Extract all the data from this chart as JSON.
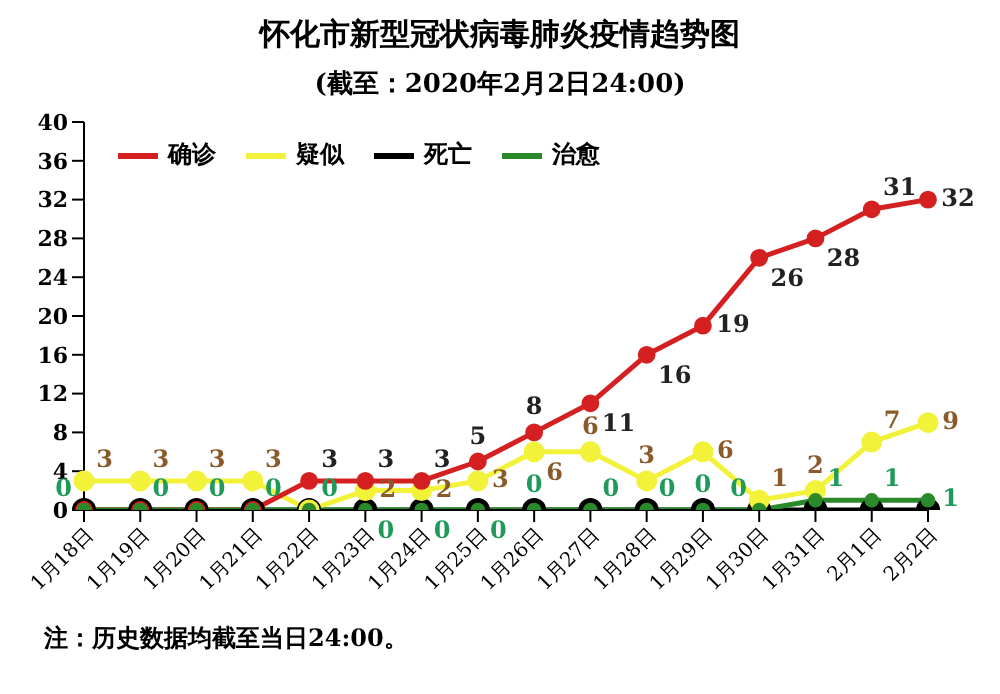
{
  "chart_data": {
    "type": "line",
    "title": "怀化市新型冠状病毒肺炎疫情趋势图",
    "subtitle": "(截至：2020年2月2日24:00)",
    "annotations": [
      "注：历史数据均截至当日24:00。"
    ],
    "categories": [
      "1月18日",
      "1月19日",
      "1月20日",
      "1月21日",
      "1月22日",
      "1月23日",
      "1月24日",
      "1月25日",
      "1月26日",
      "1月27日",
      "1月28日",
      "1月29日",
      "1月30日",
      "1月31日",
      "2月1日",
      "2月2日"
    ],
    "series": [
      {
        "name": "确诊",
        "color": "#d42020",
        "values": [
          0,
          0,
          0,
          0,
          3,
          3,
          3,
          5,
          8,
          11,
          16,
          19,
          26,
          28,
          31,
          32
        ],
        "value_labels": [
          null,
          null,
          null,
          null,
          "3",
          "3",
          "3",
          "5",
          "8",
          "11",
          "16",
          "19",
          "26",
          "28",
          "31",
          "32"
        ]
      },
      {
        "name": "疑似",
        "color": "#f2f23a",
        "values": [
          3,
          3,
          3,
          3,
          0,
          2,
          2,
          3,
          6,
          6,
          3,
          6,
          1,
          2,
          7,
          9
        ],
        "value_labels": [
          "3",
          "3",
          "3",
          "3",
          null,
          "2",
          "2",
          "3",
          "6",
          "6",
          "3",
          "6",
          "1",
          "2",
          "7",
          "9"
        ]
      },
      {
        "name": "死亡",
        "color": "#000000",
        "values": [
          0,
          0,
          0,
          0,
          0,
          0,
          0,
          0,
          0,
          0,
          0,
          0,
          0,
          0,
          0,
          0
        ]
      },
      {
        "name": "治愈",
        "color": "#2a8a2a",
        "values": [
          0,
          0,
          0,
          0,
          0,
          0,
          0,
          0,
          0,
          0,
          0,
          0,
          0,
          1,
          1,
          1
        ],
        "value_labels": [
          "0",
          "0",
          "0",
          "0",
          "0",
          "0",
          "0",
          "0",
          "0",
          "0",
          "0",
          "0",
          "0",
          "1",
          "1",
          "1"
        ]
      }
    ],
    "ylim": [
      0,
      40
    ],
    "yticks": [
      0,
      4,
      8,
      12,
      16,
      20,
      24,
      28,
      32,
      36,
      40
    ],
    "grid": false,
    "legend": "top left",
    "marker": "circle",
    "line_style": "solid"
  }
}
